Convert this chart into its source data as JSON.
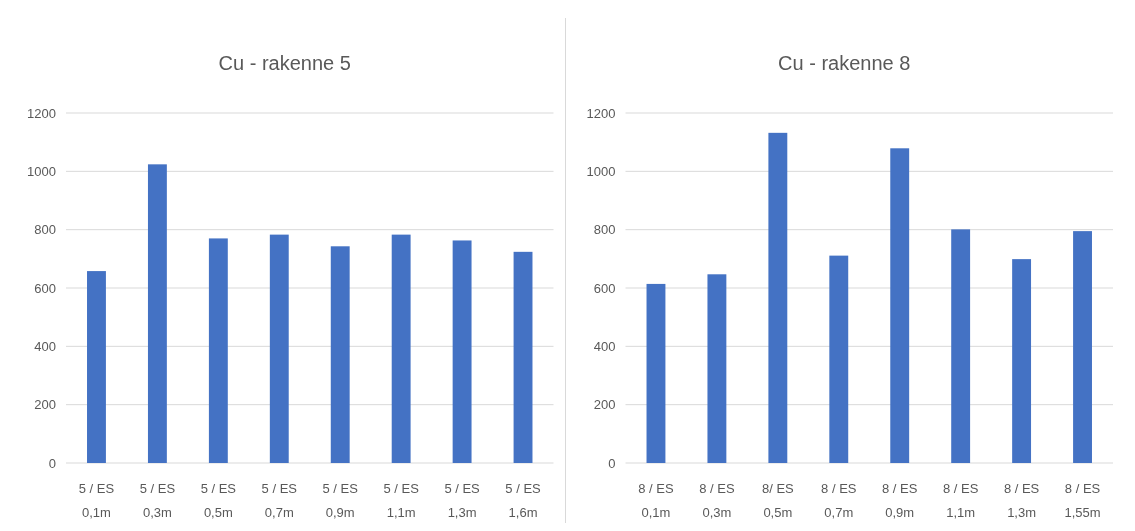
{
  "chart_data": [
    {
      "type": "bar",
      "title": "Cu - rakenne 5",
      "categories": [
        "5 / ES 0,1m",
        "5 / ES 0,3m",
        "5 / ES 0,5m",
        "5 / ES 0,7m",
        "5 / ES 0,9m",
        "5 / ES 1,1m",
        "5 / ES 1,3m",
        "5 / ES 1,6m"
      ],
      "values": [
        658,
        1024,
        770,
        783,
        743,
        783,
        763,
        724
      ],
      "color": "#4472c4",
      "ylim": [
        0,
        1200
      ],
      "yticks": [
        0,
        200,
        400,
        600,
        800,
        1000,
        1200
      ],
      "grid": "y"
    },
    {
      "type": "bar",
      "title": "Cu - rakenne 8",
      "categories": [
        "8 / ES 0,1m",
        "8 / ES 0,3m",
        "8/ ES 0,5m",
        "8 / ES 0,7m",
        "8 / ES 0,9m",
        "8 / ES 1,1m",
        "8 / ES 1,3m",
        "8 / ES 1,55m"
      ],
      "values": [
        614,
        647,
        1132,
        711,
        1079,
        801,
        699,
        795
      ],
      "color": "#4472c4",
      "ylim": [
        0,
        1200
      ],
      "yticks": [
        0,
        200,
        400,
        600,
        800,
        1000,
        1200
      ],
      "grid": "y"
    }
  ]
}
